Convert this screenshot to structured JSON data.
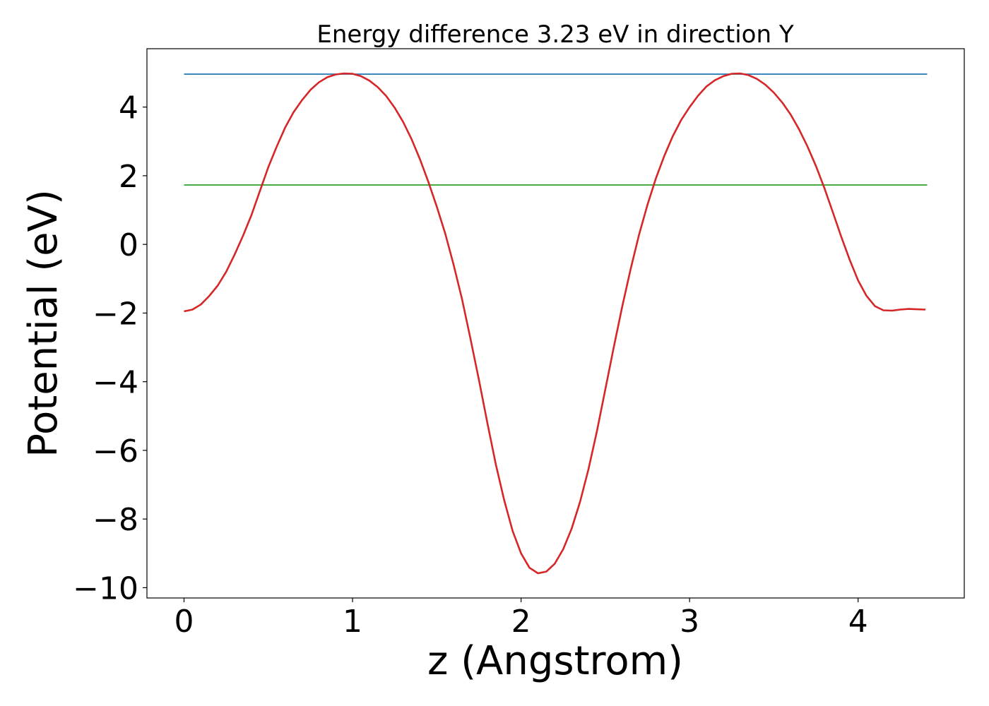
{
  "chart_data": {
    "type": "line",
    "title": "Energy difference 3.23 eV in direction Y",
    "xlabel": "z (Angstrom)",
    "ylabel": "Potential (eV)",
    "xlim": [
      -0.22,
      4.63
    ],
    "ylim": [
      -10.3,
      5.7
    ],
    "xticks": [
      {
        "value": 0,
        "label": "0"
      },
      {
        "value": 1,
        "label": "1"
      },
      {
        "value": 2,
        "label": "2"
      },
      {
        "value": 3,
        "label": "3"
      },
      {
        "value": 4,
        "label": "4"
      }
    ],
    "yticks": [
      {
        "value": 4,
        "label": "4"
      },
      {
        "value": 2,
        "label": "2"
      },
      {
        "value": 0,
        "label": "0"
      },
      {
        "value": -2,
        "label": "−2"
      },
      {
        "value": -4,
        "label": "−4"
      },
      {
        "value": -6,
        "label": "−6"
      },
      {
        "value": -8,
        "label": "−8"
      },
      {
        "value": -10,
        "label": "−10"
      }
    ],
    "grid": false,
    "series": [
      {
        "color": "#1f77b4",
        "x": [
          0,
          4.41
        ],
        "y": [
          4.96,
          4.96
        ]
      },
      {
        "color": "#2ca02c",
        "x": [
          0,
          4.41
        ],
        "y": [
          1.73,
          1.73
        ]
      },
      {
        "color": "#d62728",
        "x": [
          0,
          0.05,
          0.1,
          0.15,
          0.2,
          0.25,
          0.3,
          0.35,
          0.4,
          0.45,
          0.5,
          0.55,
          0.6,
          0.65,
          0.7,
          0.75,
          0.8,
          0.85,
          0.9,
          0.95,
          1.0,
          1.05,
          1.1,
          1.15,
          1.2,
          1.25,
          1.3,
          1.35,
          1.4,
          1.45,
          1.5,
          1.55,
          1.6,
          1.65,
          1.7,
          1.75,
          1.8,
          1.85,
          1.9,
          1.95,
          2.0,
          2.05,
          2.1,
          2.15,
          2.2,
          2.25,
          2.3,
          2.35,
          2.4,
          2.45,
          2.5,
          2.55,
          2.6,
          2.65,
          2.7,
          2.75,
          2.8,
          2.85,
          2.9,
          2.95,
          3.0,
          3.05,
          3.1,
          3.15,
          3.2,
          3.25,
          3.3,
          3.35,
          3.4,
          3.45,
          3.5,
          3.55,
          3.6,
          3.65,
          3.7,
          3.75,
          3.8,
          3.85,
          3.9,
          3.95,
          4.0,
          4.05,
          4.1,
          4.15,
          4.2,
          4.25,
          4.3,
          4.35,
          4.4
        ],
        "y": [
          -1.95,
          -1.9,
          -1.75,
          -1.5,
          -1.2,
          -0.8,
          -0.3,
          0.25,
          0.85,
          1.55,
          2.25,
          2.85,
          3.4,
          3.85,
          4.2,
          4.5,
          4.72,
          4.87,
          4.95,
          4.98,
          4.97,
          4.9,
          4.77,
          4.58,
          4.32,
          3.98,
          3.57,
          3.07,
          2.48,
          1.82,
          1.1,
          0.32,
          -0.6,
          -1.6,
          -2.75,
          -3.95,
          -5.2,
          -6.4,
          -7.45,
          -8.35,
          -9.0,
          -9.42,
          -9.58,
          -9.53,
          -9.3,
          -8.88,
          -8.28,
          -7.5,
          -6.55,
          -5.45,
          -4.22,
          -3.0,
          -1.82,
          -0.72,
          0.28,
          1.15,
          1.92,
          2.58,
          3.15,
          3.62,
          4.0,
          4.33,
          4.6,
          4.78,
          4.9,
          4.97,
          4.98,
          4.93,
          4.82,
          4.65,
          4.42,
          4.13,
          3.78,
          3.35,
          2.85,
          2.28,
          1.64,
          0.94,
          0.22,
          -0.45,
          -1.05,
          -1.5,
          -1.8,
          -1.92,
          -1.93,
          -1.9,
          -1.88,
          -1.89,
          -1.9
        ]
      }
    ]
  }
}
